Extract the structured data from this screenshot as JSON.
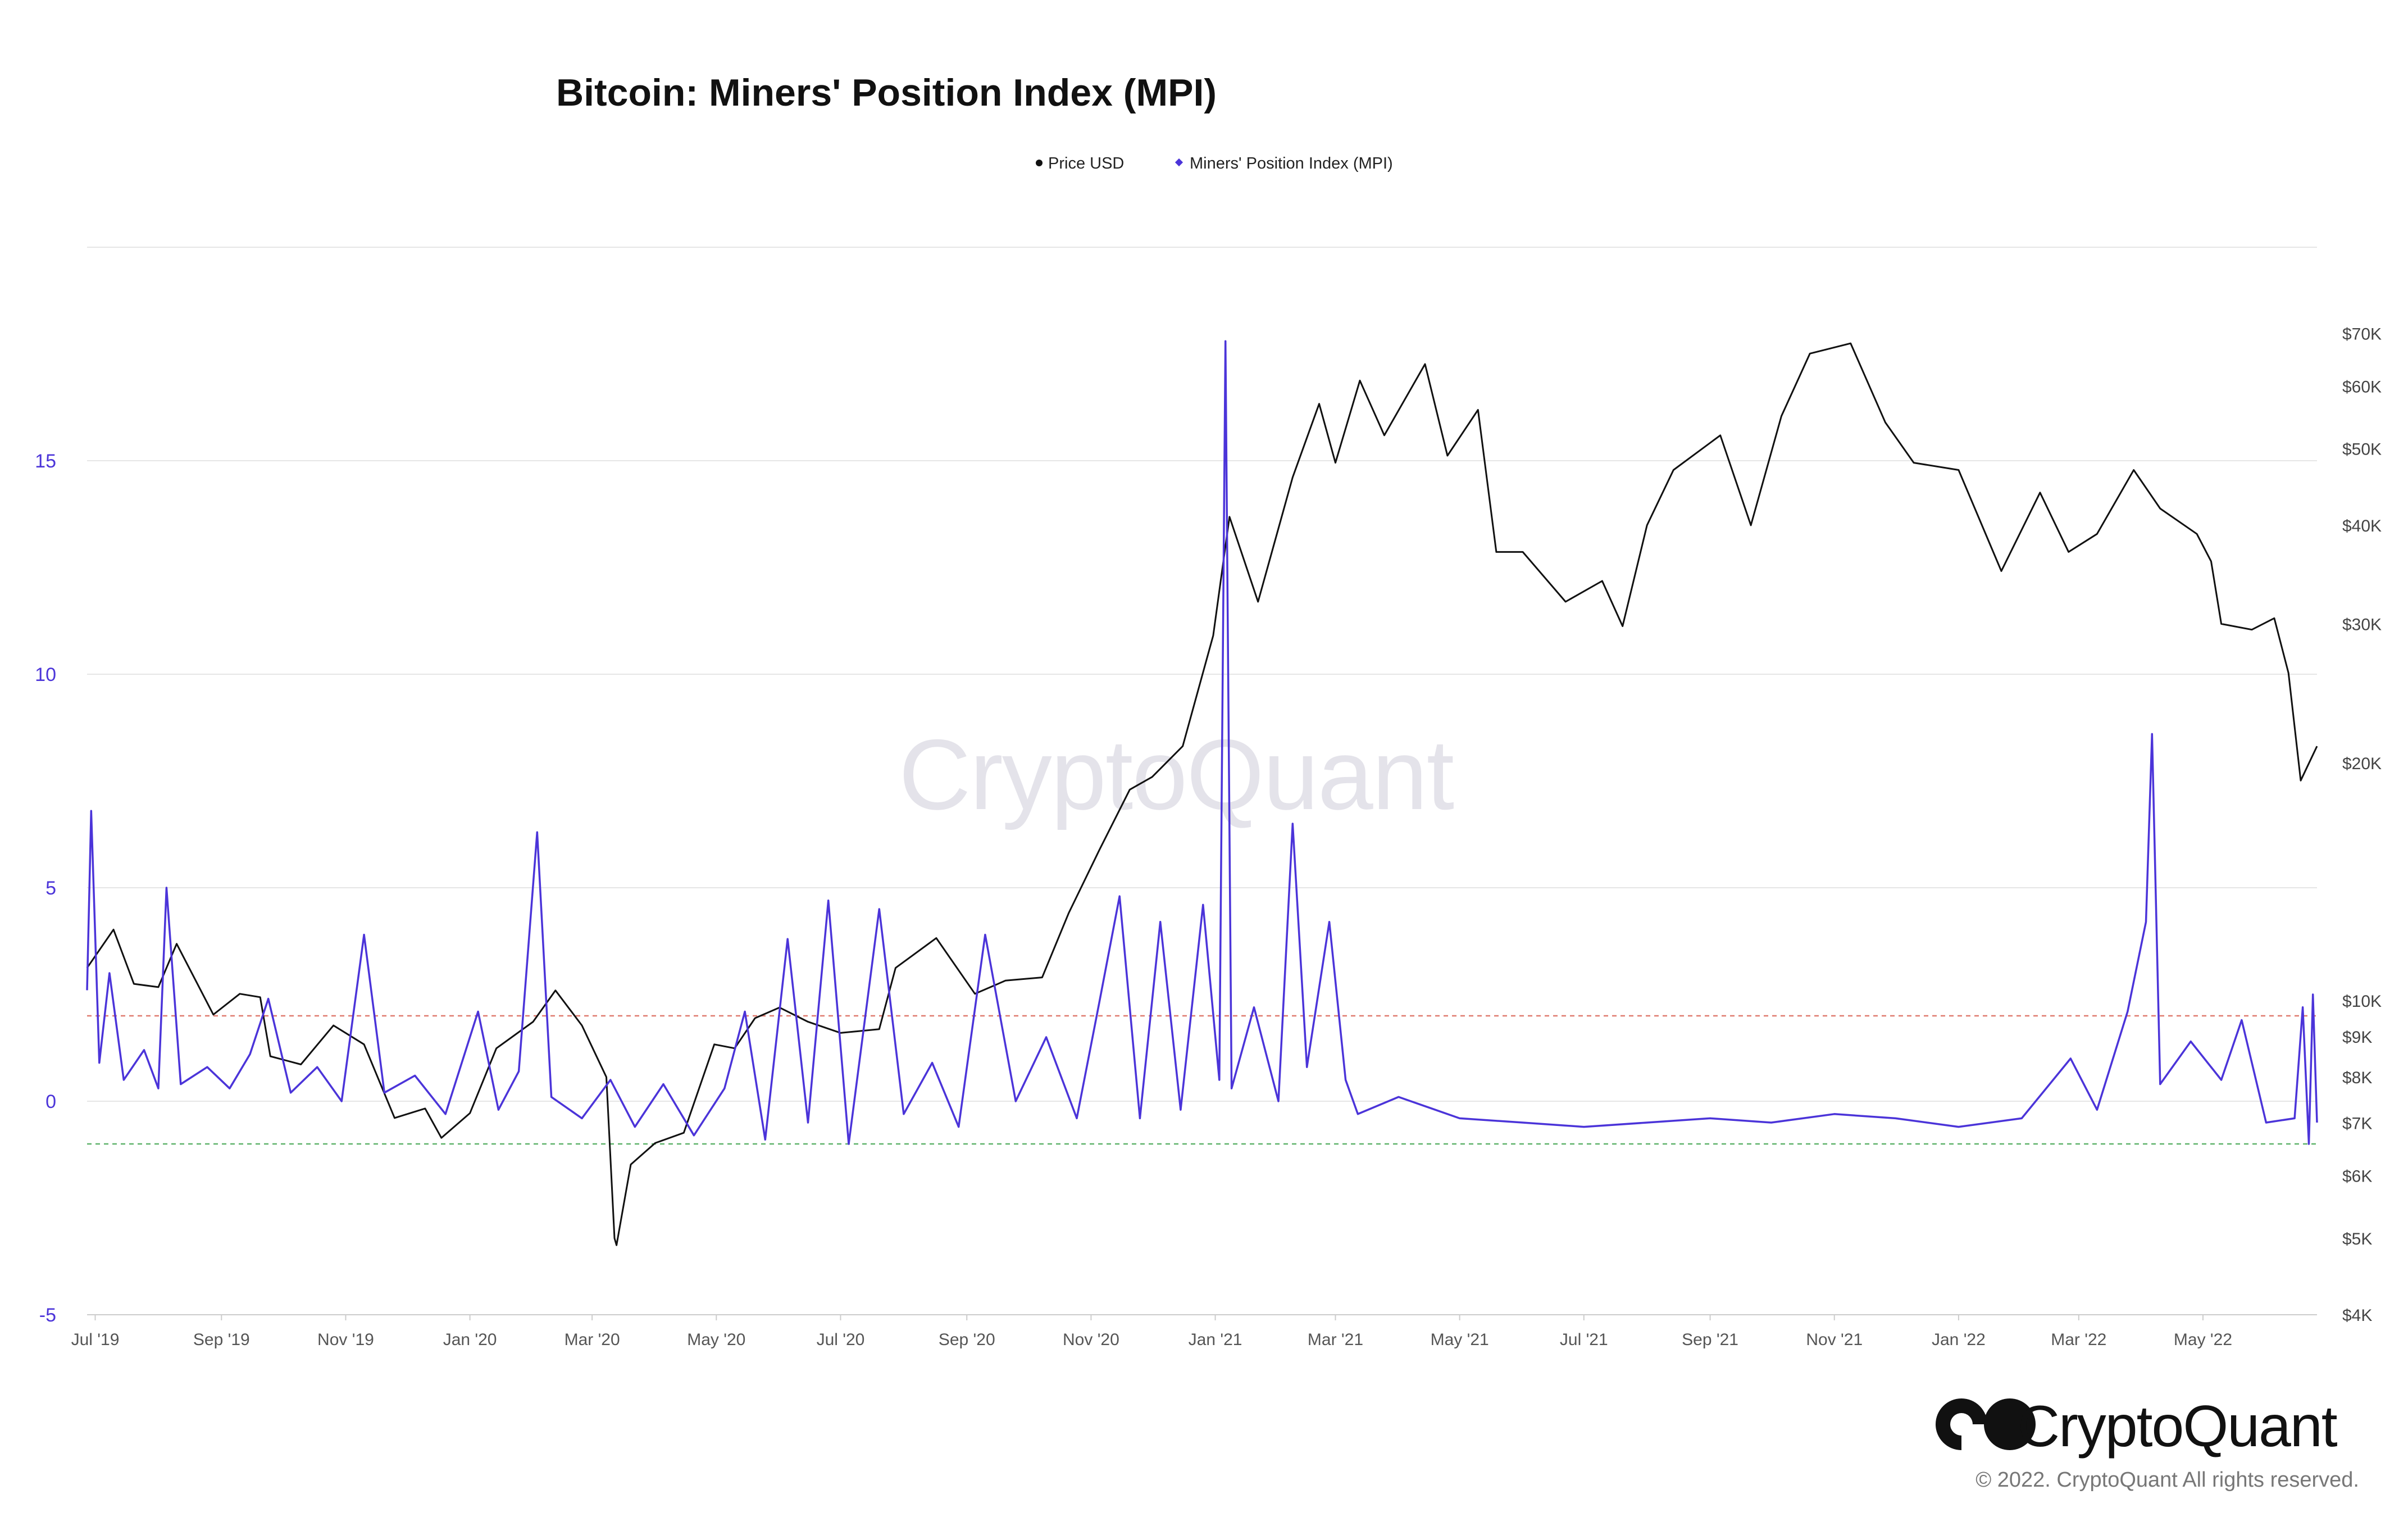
{
  "chart_data": {
    "type": "line",
    "title": "Bitcoin: Miners' Position Index (MPI)",
    "legend": {
      "placement": "top-center",
      "items": [
        {
          "label": "Price USD",
          "color": "#111111"
        },
        {
          "label": "Miners' Position Index (MPI)",
          "color": "#4b34d9"
        }
      ]
    },
    "x_ticks": [
      "Jul '19",
      "Sep '19",
      "Nov '19",
      "Jan '20",
      "Mar '20",
      "May '20",
      "Jul '20",
      "Sep '20",
      "Nov '20",
      "Jan '21",
      "Mar '21",
      "May '21",
      "Jul '21",
      "Sep '21",
      "Nov '21",
      "Jan '22",
      "Mar '22",
      "May '22"
    ],
    "x_tick_dates": [
      "2019-07-01",
      "2019-09-01",
      "2019-11-01",
      "2020-01-01",
      "2020-03-01",
      "2020-05-01",
      "2020-07-01",
      "2020-09-01",
      "2020-11-01",
      "2021-01-01",
      "2021-03-01",
      "2021-05-01",
      "2021-07-01",
      "2021-09-01",
      "2021-11-01",
      "2022-01-01",
      "2022-03-01",
      "2022-05-01"
    ],
    "x_range": [
      "2019-06-27",
      "2022-06-26"
    ],
    "left_axis": {
      "series": "Miners' Position Index (MPI)",
      "ticks": [
        -5,
        0,
        5,
        10,
        15
      ],
      "range": [
        -5,
        20
      ]
    },
    "right_axis": {
      "series": "Price USD",
      "scale": "log",
      "ticks": [
        4000,
        5000,
        6000,
        7000,
        8000,
        9000,
        10000,
        20000,
        30000,
        40000,
        50000,
        60000,
        70000
      ],
      "tick_labels": [
        "$4K",
        "$5K",
        "$6K",
        "$7K",
        "$8K",
        "$9K",
        "$10K",
        "$20K",
        "$30K",
        "$40K",
        "$50K",
        "$60K",
        "$70K"
      ],
      "range": [
        4000,
        90000
      ]
    },
    "reference_lines": [
      {
        "axis": "left",
        "value": 2,
        "color": "#e07a6f",
        "style": "dashed"
      },
      {
        "axis": "left",
        "value": -1,
        "color": "#5fb36a",
        "style": "dashed"
      }
    ],
    "grid": {
      "horizontal": true,
      "vertical": false
    },
    "series": [
      {
        "name": "Price USD",
        "axis": "right",
        "color": "#111111",
        "points": [
          [
            "2019-06-27",
            11000
          ],
          [
            "2019-07-10",
            12300
          ],
          [
            "2019-07-20",
            10500
          ],
          [
            "2019-08-01",
            10400
          ],
          [
            "2019-08-10",
            11800
          ],
          [
            "2019-08-28",
            9600
          ],
          [
            "2019-09-10",
            10200
          ],
          [
            "2019-09-20",
            10100
          ],
          [
            "2019-09-25",
            8500
          ],
          [
            "2019-10-10",
            8300
          ],
          [
            "2019-10-26",
            9300
          ],
          [
            "2019-11-10",
            8800
          ],
          [
            "2019-11-25",
            7100
          ],
          [
            "2019-12-10",
            7300
          ],
          [
            "2019-12-18",
            6700
          ],
          [
            "2020-01-01",
            7200
          ],
          [
            "2020-01-14",
            8700
          ],
          [
            "2020-02-01",
            9400
          ],
          [
            "2020-02-12",
            10300
          ],
          [
            "2020-02-25",
            9300
          ],
          [
            "2020-03-08",
            8000
          ],
          [
            "2020-03-12",
            5000
          ],
          [
            "2020-03-13",
            4900
          ],
          [
            "2020-03-20",
            6200
          ],
          [
            "2020-04-01",
            6600
          ],
          [
            "2020-04-15",
            6800
          ],
          [
            "2020-04-30",
            8800
          ],
          [
            "2020-05-10",
            8700
          ],
          [
            "2020-05-20",
            9500
          ],
          [
            "2020-06-01",
            9800
          ],
          [
            "2020-06-15",
            9400
          ],
          [
            "2020-07-01",
            9100
          ],
          [
            "2020-07-20",
            9200
          ],
          [
            "2020-07-28",
            11000
          ],
          [
            "2020-08-17",
            12000
          ],
          [
            "2020-09-05",
            10200
          ],
          [
            "2020-09-20",
            10600
          ],
          [
            "2020-10-08",
            10700
          ],
          [
            "2020-10-21",
            12900
          ],
          [
            "2020-11-05",
            15500
          ],
          [
            "2020-11-20",
            18500
          ],
          [
            "2020-12-01",
            19200
          ],
          [
            "2020-12-16",
            21000
          ],
          [
            "2020-12-31",
            29000
          ],
          [
            "2021-01-08",
            41000
          ],
          [
            "2021-01-22",
            32000
          ],
          [
            "2021-02-08",
            46000
          ],
          [
            "2021-02-21",
            57000
          ],
          [
            "2021-03-01",
            48000
          ],
          [
            "2021-03-13",
            61000
          ],
          [
            "2021-03-25",
            52000
          ],
          [
            "2021-04-14",
            64000
          ],
          [
            "2021-04-25",
            49000
          ],
          [
            "2021-05-10",
            56000
          ],
          [
            "2021-05-19",
            37000
          ],
          [
            "2021-06-01",
            37000
          ],
          [
            "2021-06-22",
            32000
          ],
          [
            "2021-07-10",
            34000
          ],
          [
            "2021-07-20",
            29800
          ],
          [
            "2021-08-01",
            40000
          ],
          [
            "2021-08-14",
            47000
          ],
          [
            "2021-09-06",
            52000
          ],
          [
            "2021-09-21",
            40000
          ],
          [
            "2021-10-06",
            55000
          ],
          [
            "2021-10-20",
            66000
          ],
          [
            "2021-11-09",
            68000
          ],
          [
            "2021-11-26",
            54000
          ],
          [
            "2021-12-10",
            48000
          ],
          [
            "2022-01-01",
            47000
          ],
          [
            "2022-01-22",
            35000
          ],
          [
            "2022-02-10",
            44000
          ],
          [
            "2022-02-24",
            37000
          ],
          [
            "2022-03-10",
            39000
          ],
          [
            "2022-03-28",
            47000
          ],
          [
            "2022-04-10",
            42000
          ],
          [
            "2022-04-28",
            39000
          ],
          [
            "2022-05-05",
            36000
          ],
          [
            "2022-05-10",
            30000
          ],
          [
            "2022-05-25",
            29500
          ],
          [
            "2022-06-05",
            30500
          ],
          [
            "2022-06-12",
            26000
          ],
          [
            "2022-06-18",
            19000
          ],
          [
            "2022-06-26",
            21000
          ]
        ]
      },
      {
        "name": "Miners' Position Index (MPI)",
        "axis": "left",
        "color": "#4b34d9",
        "points": [
          [
            "2019-06-27",
            2.6
          ],
          [
            "2019-06-29",
            6.8
          ],
          [
            "2019-07-03",
            0.9
          ],
          [
            "2019-07-08",
            3.0
          ],
          [
            "2019-07-15",
            0.5
          ],
          [
            "2019-07-25",
            1.2
          ],
          [
            "2019-08-01",
            0.3
          ],
          [
            "2019-08-05",
            5.0
          ],
          [
            "2019-08-12",
            0.4
          ],
          [
            "2019-08-25",
            0.8
          ],
          [
            "2019-09-05",
            0.3
          ],
          [
            "2019-09-15",
            1.1
          ],
          [
            "2019-09-24",
            2.4
          ],
          [
            "2019-10-05",
            0.2
          ],
          [
            "2019-10-18",
            0.8
          ],
          [
            "2019-10-30",
            0.0
          ],
          [
            "2019-11-10",
            3.9
          ],
          [
            "2019-11-20",
            0.2
          ],
          [
            "2019-12-05",
            0.6
          ],
          [
            "2019-12-20",
            -0.3
          ],
          [
            "2020-01-05",
            2.1
          ],
          [
            "2020-01-15",
            -0.2
          ],
          [
            "2020-01-25",
            0.7
          ],
          [
            "2020-02-03",
            6.3
          ],
          [
            "2020-02-10",
            0.1
          ],
          [
            "2020-02-25",
            -0.4
          ],
          [
            "2020-03-10",
            0.5
          ],
          [
            "2020-03-22",
            -0.6
          ],
          [
            "2020-04-05",
            0.4
          ],
          [
            "2020-04-20",
            -0.8
          ],
          [
            "2020-05-05",
            0.3
          ],
          [
            "2020-05-15",
            2.1
          ],
          [
            "2020-05-25",
            -0.9
          ],
          [
            "2020-06-05",
            3.8
          ],
          [
            "2020-06-15",
            -0.5
          ],
          [
            "2020-06-25",
            4.7
          ],
          [
            "2020-07-05",
            -1.0
          ],
          [
            "2020-07-20",
            4.5
          ],
          [
            "2020-08-01",
            -0.3
          ],
          [
            "2020-08-15",
            0.9
          ],
          [
            "2020-08-28",
            -0.6
          ],
          [
            "2020-09-10",
            3.9
          ],
          [
            "2020-09-25",
            0.0
          ],
          [
            "2020-10-10",
            1.5
          ],
          [
            "2020-10-25",
            -0.4
          ],
          [
            "2020-11-05",
            2.3
          ],
          [
            "2020-11-15",
            4.8
          ],
          [
            "2020-11-25",
            -0.4
          ],
          [
            "2020-12-05",
            4.2
          ],
          [
            "2020-12-15",
            -0.2
          ],
          [
            "2020-12-26",
            4.6
          ],
          [
            "2021-01-03",
            0.5
          ],
          [
            "2021-01-06",
            17.8
          ],
          [
            "2021-01-09",
            0.3
          ],
          [
            "2021-01-20",
            2.2
          ],
          [
            "2021-02-01",
            0.0
          ],
          [
            "2021-02-08",
            6.5
          ],
          [
            "2021-02-15",
            0.8
          ],
          [
            "2021-02-26",
            4.2
          ],
          [
            "2021-03-06",
            0.5
          ],
          [
            "2021-03-12",
            -0.3
          ],
          [
            "2021-04-01",
            0.1
          ],
          [
            "2021-05-01",
            -0.4
          ],
          [
            "2021-06-01",
            -0.5
          ],
          [
            "2021-07-01",
            -0.6
          ],
          [
            "2021-08-01",
            -0.5
          ],
          [
            "2021-09-01",
            -0.4
          ],
          [
            "2021-10-01",
            -0.5
          ],
          [
            "2021-11-01",
            -0.3
          ],
          [
            "2021-12-01",
            -0.4
          ],
          [
            "2022-01-01",
            -0.6
          ],
          [
            "2022-02-01",
            -0.4
          ],
          [
            "2022-02-25",
            1.0
          ],
          [
            "2022-03-10",
            -0.2
          ],
          [
            "2022-03-25",
            2.1
          ],
          [
            "2022-04-03",
            4.2
          ],
          [
            "2022-04-06",
            8.6
          ],
          [
            "2022-04-10",
            0.4
          ],
          [
            "2022-04-25",
            1.4
          ],
          [
            "2022-05-10",
            0.5
          ],
          [
            "2022-05-20",
            1.9
          ],
          [
            "2022-06-01",
            -0.5
          ],
          [
            "2022-06-15",
            -0.4
          ],
          [
            "2022-06-19",
            2.2
          ],
          [
            "2022-06-22",
            -1.0
          ],
          [
            "2022-06-24",
            2.5
          ],
          [
            "2022-06-26",
            -0.5
          ]
        ]
      }
    ]
  },
  "watermark": "CryptoQuant",
  "brand": {
    "name": "CryptoQuant",
    "copyright": "© 2022. CryptoQuant All rights reserved."
  }
}
